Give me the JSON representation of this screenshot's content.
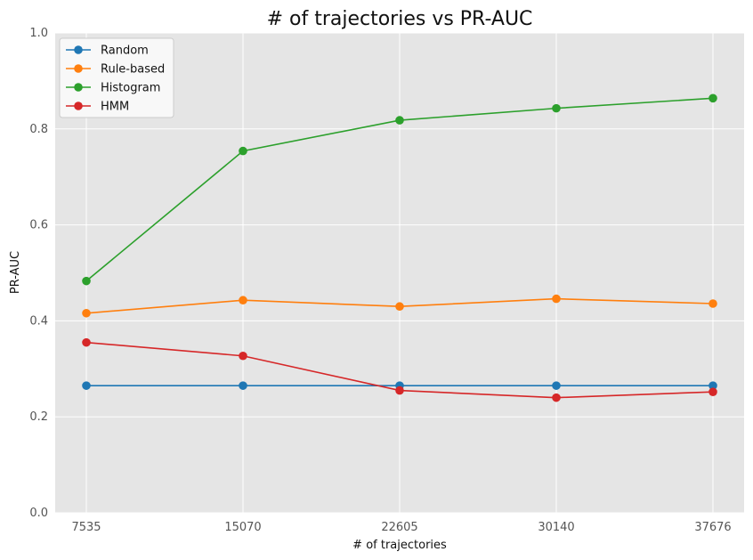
{
  "chart_data": {
    "type": "line",
    "title": "# of trajectories vs PR-AUC",
    "xlabel": "# of trajectories",
    "ylabel": "PR-AUC",
    "categories": [
      "7535",
      "15070",
      "22605",
      "30140",
      "37676"
    ],
    "ylim": [
      0,
      1
    ],
    "yticks": [
      "0.0",
      "0.2",
      "0.4",
      "0.6",
      "0.8",
      "1.0"
    ],
    "grid": true,
    "legend": "top-left",
    "series": [
      {
        "name": "Random",
        "color": "#1f77b4",
        "values": [
          0.265,
          0.265,
          0.265,
          0.265,
          0.265
        ]
      },
      {
        "name": "Rule-based",
        "color": "#ff7f0e",
        "values": [
          0.416,
          0.443,
          0.43,
          0.446,
          0.436
        ]
      },
      {
        "name": "Histogram",
        "color": "#2ca02c",
        "values": [
          0.483,
          0.754,
          0.818,
          0.843,
          0.864
        ]
      },
      {
        "name": "HMM",
        "color": "#d62728",
        "values": [
          0.355,
          0.327,
          0.255,
          0.24,
          0.252
        ]
      }
    ]
  }
}
